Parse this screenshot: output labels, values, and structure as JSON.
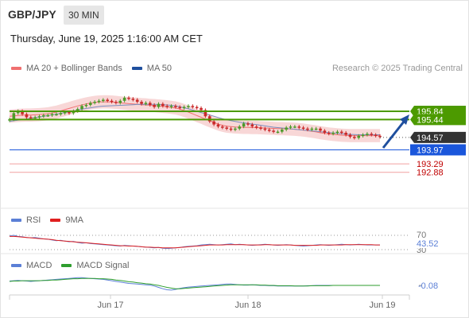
{
  "header": {
    "symbol": "GBP/JPY",
    "timeframe": "30 MIN",
    "datetime": "Thursday, June 19, 2025 1:16:00 AM CET",
    "credit": "Research © 2025 Trading Central"
  },
  "legends": {
    "price": [
      {
        "label": "MA 20 + Bollinger Bands",
        "color": "#f07070"
      },
      {
        "label": "MA 50",
        "color": "#1f4f9e"
      }
    ],
    "rsi": [
      {
        "label": "RSI",
        "color": "#5b7fd6"
      },
      {
        "label": "9MA",
        "color": "#e02020"
      }
    ],
    "macd": [
      {
        "label": "MACD",
        "color": "#5b7fd6"
      },
      {
        "label": "MACD Signal",
        "color": "#2e9e2e"
      }
    ]
  },
  "colors": {
    "up": "#4c9a2a",
    "down": "#c92a2a",
    "band_fill": "#f8d7d7",
    "resistance": "#4c9a00",
    "pivot": "#1a56db",
    "support": "#f0a0a0",
    "support_text": "#c00000",
    "current": "#333333",
    "arrow": "#1f4f9e"
  },
  "chart_data": [
    {
      "type": "candlestick",
      "x_ticks": [
        "Jun 17",
        "Jun 18",
        "Jun 19"
      ],
      "ylim": [
        192.7,
        196.2
      ],
      "levels": [
        {
          "value": 195.84,
          "label": "195.84",
          "kind": "resistance"
        },
        {
          "value": 195.44,
          "label": "195.44",
          "kind": "resistance"
        },
        {
          "value": 194.57,
          "label": "194.57",
          "kind": "current"
        },
        {
          "value": 193.97,
          "label": "193.97",
          "kind": "pivot"
        },
        {
          "value": 193.29,
          "label": "193.29",
          "kind": "support"
        },
        {
          "value": 192.88,
          "label": "192.88",
          "kind": "support"
        }
      ],
      "close_series": [
        195.45,
        195.75,
        195.85,
        195.7,
        195.55,
        195.5,
        195.55,
        195.6,
        195.65,
        195.65,
        195.7,
        195.7,
        195.75,
        195.8,
        195.75,
        195.85,
        195.95,
        196.1,
        196.15,
        196.25,
        196.3,
        196.35,
        196.4,
        196.35,
        196.3,
        196.25,
        196.35,
        196.5,
        196.45,
        196.4,
        196.3,
        196.2,
        196.25,
        196.15,
        196.05,
        196.2,
        196.1,
        196.05,
        196.1,
        196.05,
        196.0,
        196.05,
        196.1,
        196.05,
        196.0,
        195.9,
        195.6,
        195.35,
        195.2,
        195.1,
        195.05,
        195.0,
        194.95,
        195.0,
        195.1,
        195.25,
        195.2,
        195.1,
        195.05,
        195.0,
        194.95,
        194.9,
        194.85,
        194.85,
        194.95,
        195.05,
        195.1,
        195.1,
        195.05,
        195.0,
        194.95,
        195.0,
        195.0,
        194.9,
        194.8,
        194.75,
        194.8,
        194.85,
        194.8,
        194.7,
        194.6,
        194.55,
        194.65,
        194.7,
        194.75,
        194.7,
        194.65,
        194.6
      ],
      "ma20": [
        195.6,
        195.62,
        195.64,
        195.65,
        195.66,
        195.66,
        195.67,
        195.68,
        195.7,
        195.72,
        195.76,
        195.8,
        195.86,
        195.92,
        195.98,
        196.04,
        196.1,
        196.15,
        196.2,
        196.24,
        196.27,
        196.29,
        196.3,
        196.3,
        196.29,
        196.27,
        196.25,
        196.23,
        196.21,
        196.2,
        196.18,
        196.16,
        196.15,
        196.13,
        196.12,
        196.1,
        196.08,
        196.06,
        196.03,
        196.0,
        195.95,
        195.88,
        195.8,
        195.72,
        195.63,
        195.55,
        195.46,
        195.38,
        195.3,
        195.22,
        195.16,
        195.12,
        195.1,
        195.08,
        195.07,
        195.06,
        195.06,
        195.05,
        195.05,
        195.04,
        195.03,
        195.02,
        195.01,
        195.0,
        195.0,
        194.99,
        194.98,
        194.97,
        194.95,
        194.93,
        194.9,
        194.87,
        194.84,
        194.8,
        194.77,
        194.74,
        194.72,
        194.7,
        194.68,
        194.67,
        194.66,
        194.66,
        194.66,
        194.66,
        194.66,
        194.66,
        194.66,
        194.66
      ],
      "ma50": [
        195.35,
        195.38,
        195.41,
        195.44,
        195.47,
        195.5,
        195.53,
        195.56,
        195.6,
        195.63,
        195.67,
        195.7,
        195.74,
        195.78,
        195.82,
        195.86,
        195.9,
        195.94,
        195.98,
        196.01,
        196.04,
        196.07,
        196.09,
        196.1,
        196.11,
        196.12,
        196.13,
        196.14,
        196.15,
        196.16,
        196.17,
        196.18,
        196.18,
        196.18,
        196.18,
        196.17,
        196.16,
        196.15,
        196.13,
        196.1,
        196.06,
        196.01,
        195.96,
        195.9,
        195.84,
        195.78,
        195.72,
        195.66,
        195.6,
        195.54,
        195.48,
        195.43,
        195.39,
        195.35,
        195.31,
        195.28,
        195.25,
        195.22,
        195.19,
        195.16,
        195.13,
        195.1,
        195.07,
        195.05,
        195.03,
        195.01,
        194.99,
        194.97,
        194.95,
        194.93,
        194.91,
        194.89,
        194.87,
        194.85,
        194.83,
        194.81,
        194.79,
        194.77,
        194.75,
        194.73,
        194.72,
        194.71,
        194.7,
        194.7,
        194.7,
        194.7,
        194.7,
        194.7
      ]
    },
    {
      "type": "line",
      "name": "RSI",
      "levels": [
        70,
        30
      ],
      "current_value": 43.52,
      "current_label": "43.52",
      "level_labels": [
        "70",
        "30"
      ],
      "ylim": [
        20,
        80
      ],
      "rsi": [
        68,
        70,
        67,
        66,
        64,
        63,
        64,
        62,
        60,
        59,
        57,
        55,
        56,
        54,
        52,
        53,
        50,
        48,
        49,
        47,
        46,
        45,
        44,
        43,
        42,
        41,
        40,
        42,
        41,
        40,
        39,
        38,
        37,
        36,
        35,
        36,
        34,
        33,
        34,
        35,
        36,
        38,
        39,
        40,
        41,
        43,
        44,
        45,
        44,
        43,
        44,
        45,
        46,
        44,
        45,
        44,
        43,
        42,
        43,
        44,
        45,
        44,
        43,
        42,
        43,
        44,
        43,
        42,
        41,
        40,
        41,
        42,
        43,
        44,
        43,
        42,
        43,
        44,
        45,
        44,
        43,
        44,
        45,
        44,
        43,
        43,
        43,
        43
      ],
      "ma9": [
        67,
        67,
        66,
        65,
        64,
        63,
        62,
        61,
        60,
        59,
        58,
        56,
        55,
        54,
        53,
        52,
        51,
        50,
        49,
        48,
        47,
        46,
        45,
        44,
        43,
        42,
        41,
        41,
        40,
        40,
        39,
        38,
        37,
        37,
        36,
        36,
        35,
        35,
        35,
        35,
        36,
        37,
        38,
        39,
        40,
        41,
        42,
        43,
        43,
        43,
        43,
        44,
        44,
        44,
        44,
        44,
        43,
        43,
        43,
        43,
        44,
        44,
        43,
        43,
        43,
        43,
        43,
        42,
        42,
        42,
        42,
        42,
        42,
        43,
        43,
        43,
        43,
        43,
        43,
        44,
        44,
        44,
        44,
        44,
        44,
        44,
        43,
        43
      ]
    },
    {
      "type": "line",
      "name": "MACD",
      "current_value": -0.08,
      "current_label": "-0.08",
      "ylim": [
        -0.35,
        0.25
      ],
      "macd": [
        0.05,
        0.06,
        0.07,
        0.06,
        0.05,
        0.04,
        0.05,
        0.06,
        0.07,
        0.08,
        0.09,
        0.1,
        0.11,
        0.12,
        0.13,
        0.14,
        0.15,
        0.15,
        0.14,
        0.13,
        0.12,
        0.11,
        0.1,
        0.08,
        0.06,
        0.04,
        0.02,
        0.0,
        -0.02,
        -0.03,
        -0.04,
        -0.05,
        -0.06,
        -0.07,
        -0.1,
        -0.14,
        -0.18,
        -0.21,
        -0.22,
        -0.2,
        -0.17,
        -0.15,
        -0.13,
        -0.12,
        -0.11,
        -0.1,
        -0.09,
        -0.08,
        -0.07,
        -0.06,
        -0.05,
        -0.04,
        -0.04,
        -0.05,
        -0.06,
        -0.07,
        -0.07,
        -0.06,
        -0.07,
        -0.08,
        -0.08,
        -0.09,
        -0.09,
        -0.1,
        -0.1,
        -0.1,
        -0.1,
        -0.1,
        -0.1,
        -0.1,
        -0.09,
        -0.09,
        -0.08,
        -0.08,
        -0.08,
        -0.08,
        -0.08,
        -0.08,
        -0.08,
        -0.08,
        -0.08,
        -0.08,
        -0.08,
        -0.08,
        -0.08,
        -0.08,
        -0.08,
        -0.08
      ],
      "signal": [
        0.04,
        0.05,
        0.05,
        0.06,
        0.06,
        0.06,
        0.06,
        0.06,
        0.07,
        0.07,
        0.08,
        0.08,
        0.09,
        0.1,
        0.11,
        0.12,
        0.12,
        0.13,
        0.13,
        0.13,
        0.13,
        0.12,
        0.12,
        0.11,
        0.1,
        0.08,
        0.07,
        0.05,
        0.03,
        0.02,
        0.0,
        -0.01,
        -0.03,
        -0.04,
        -0.06,
        -0.08,
        -0.11,
        -0.14,
        -0.16,
        -0.18,
        -0.18,
        -0.17,
        -0.16,
        -0.15,
        -0.14,
        -0.13,
        -0.12,
        -0.11,
        -0.1,
        -0.09,
        -0.08,
        -0.07,
        -0.06,
        -0.06,
        -0.06,
        -0.06,
        -0.06,
        -0.06,
        -0.06,
        -0.07,
        -0.07,
        -0.08,
        -0.08,
        -0.09,
        -0.09,
        -0.09,
        -0.09,
        -0.1,
        -0.1,
        -0.1,
        -0.1,
        -0.09,
        -0.09,
        -0.09,
        -0.09,
        -0.09,
        -0.08,
        -0.08,
        -0.08,
        -0.08,
        -0.08,
        -0.08,
        -0.08,
        -0.08,
        -0.08,
        -0.08,
        -0.08,
        -0.08
      ]
    }
  ]
}
